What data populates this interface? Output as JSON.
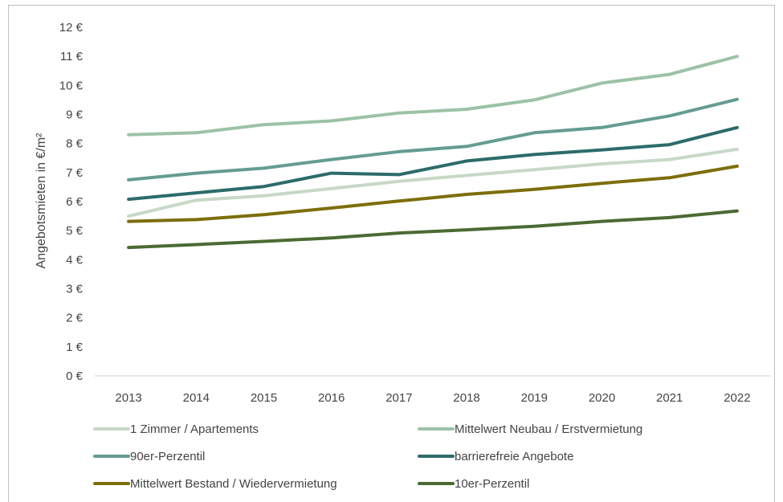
{
  "chart_data": {
    "type": "line",
    "title": "",
    "xlabel": "",
    "ylabel": "Angebotsmieten in €/m²",
    "ylim": [
      0,
      12
    ],
    "y_ticks": [
      "0 €",
      "1 €",
      "2 €",
      "3 €",
      "4 €",
      "5 €",
      "6 €",
      "7 €",
      "8 €",
      "9 €",
      "10 €",
      "11 €",
      "12 €"
    ],
    "categories": [
      "2013",
      "2014",
      "2015",
      "2016",
      "2017",
      "2018",
      "2019",
      "2020",
      "2021",
      "2022"
    ],
    "grid": false,
    "legend_position": "bottom",
    "series": [
      {
        "name": "1 Zimmer / Apartements",
        "color": "#c7d8c7",
        "values": [
          5.5,
          6.05,
          6.2,
          6.45,
          6.7,
          6.9,
          7.1,
          7.3,
          7.45,
          7.8
        ]
      },
      {
        "name": "Mittelwert Neubau / Erstvermietung",
        "color": "#9cc2a6",
        "values": [
          8.3,
          8.37,
          8.65,
          8.78,
          9.05,
          9.18,
          9.5,
          10.08,
          10.38,
          11.0
        ]
      },
      {
        "name": "90er-Perzentil",
        "color": "#649c93",
        "values": [
          6.75,
          6.98,
          7.15,
          7.45,
          7.72,
          7.9,
          8.37,
          8.55,
          8.95,
          9.52
        ]
      },
      {
        "name": "barrierefreie Angebote",
        "color": "#2d6b6b",
        "values": [
          6.08,
          6.3,
          6.52,
          6.98,
          6.93,
          7.4,
          7.62,
          7.78,
          7.96,
          8.55
        ]
      },
      {
        "name": "Mittelwert Bestand / Wiedervermietung",
        "color": "#7d6e0a",
        "values": [
          5.32,
          5.38,
          5.55,
          5.78,
          6.02,
          6.25,
          6.42,
          6.63,
          6.82,
          7.22
        ]
      },
      {
        "name": "10er-Perzentil",
        "color": "#4a6b33",
        "values": [
          4.42,
          4.52,
          4.63,
          4.75,
          4.92,
          5.03,
          5.15,
          5.32,
          5.45,
          5.68
        ]
      }
    ]
  }
}
